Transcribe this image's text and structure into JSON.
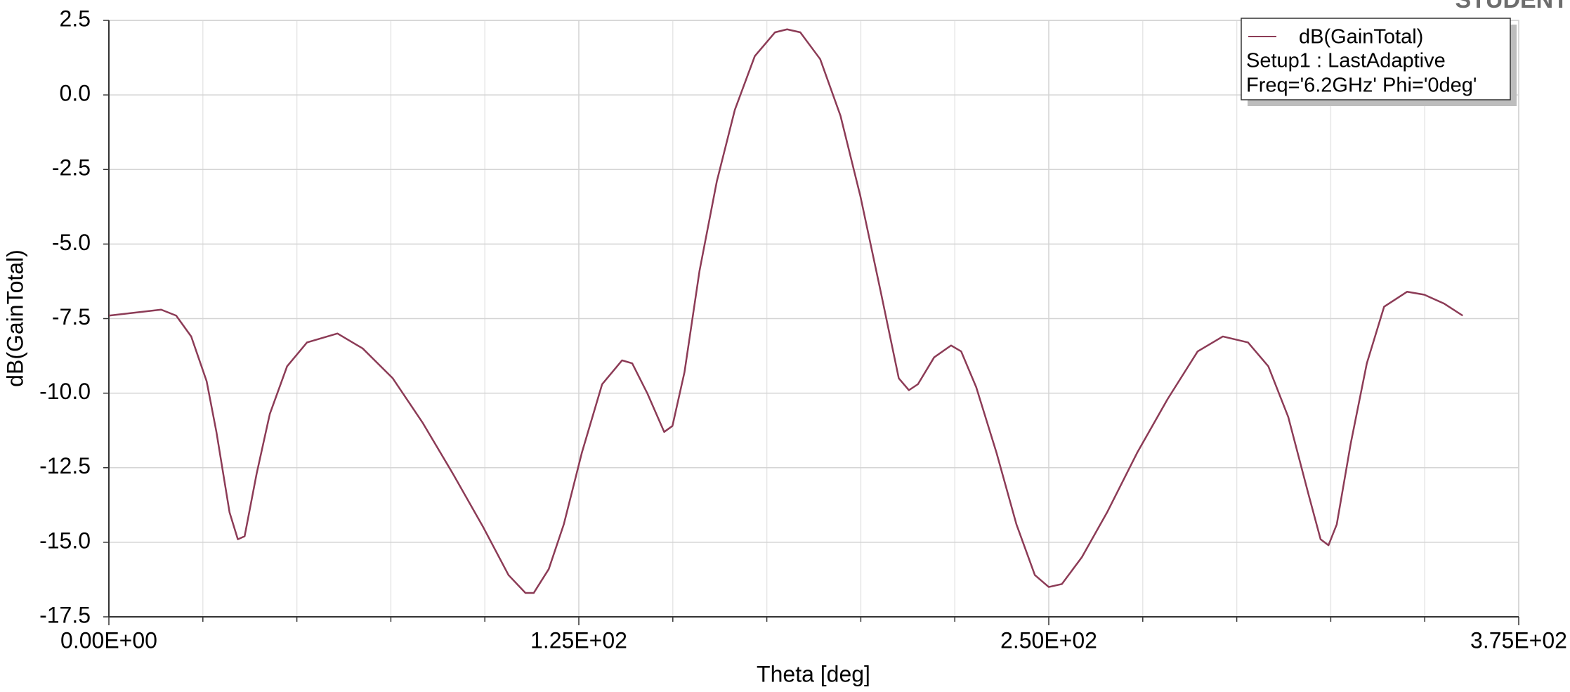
{
  "chart_data": {
    "type": "line",
    "watermark": "STUDENT",
    "x_label": "Theta [deg]",
    "y_label": "dB(GainTotal)",
    "legend_lines": [
      "Setup1 : LastAdaptive",
      "Freq='6.2GHz' Phi='0deg'"
    ],
    "legend_position": "upper right",
    "grid": true,
    "x": [
      0,
      13.9,
      17.9,
      21.9,
      26,
      28.6,
      32.1,
      34.3,
      36.1,
      39.3,
      42.8,
      47.4,
      52.7,
      60.8,
      67.5,
      75.5,
      83.5,
      91.5,
      99.6,
      106.3,
      110.8,
      113,
      117,
      121,
      125.8,
      131.2,
      136.5,
      139.2,
      143.2,
      147.7,
      149.9,
      153.1,
      157.1,
      161.7,
      166.5,
      171.8,
      177.2,
      180.4,
      183.9,
      189.2,
      194.6,
      199.9,
      205.3,
      210.1,
      212.8,
      215.2,
      219.5,
      224,
      226.7,
      230.7,
      236.1,
      241.4,
      246.3,
      250,
      253.5,
      258.8,
      265.5,
      273.5,
      281.6,
      289.6,
      296.3,
      303,
      308.4,
      313.7,
      319.1,
      322.3,
      324.4,
      326.6,
      330.3,
      334.6,
      339.2,
      345.3,
      349.9,
      355.2,
      360.1
    ],
    "series": [
      {
        "name": "dB(GainTotal)",
        "color": "#8c3b56",
        "values": [
          -7.4,
          -7.2,
          -7.4,
          -8.1,
          -9.6,
          -11.3,
          -14.0,
          -14.9,
          -14.8,
          -12.7,
          -10.7,
          -9.1,
          -8.3,
          -8.0,
          -8.5,
          -9.5,
          -11.0,
          -12.7,
          -14.5,
          -16.1,
          -16.7,
          -16.7,
          -15.9,
          -14.4,
          -12.0,
          -9.7,
          -8.9,
          -9.0,
          -10.0,
          -11.3,
          -11.1,
          -9.3,
          -5.9,
          -2.9,
          -0.5,
          1.3,
          2.1,
          2.2,
          2.1,
          1.2,
          -0.7,
          -3.4,
          -6.6,
          -9.5,
          -9.9,
          -9.7,
          -8.8,
          -8.4,
          -8.6,
          -9.8,
          -12.0,
          -14.4,
          -16.1,
          -16.5,
          -16.4,
          -15.5,
          -14.0,
          -12.0,
          -10.2,
          -8.6,
          -8.1,
          -8.3,
          -9.1,
          -10.8,
          -13.4,
          -14.9,
          -15.1,
          -14.4,
          -11.7,
          -9.0,
          -7.1,
          -6.6,
          -6.7,
          -7.0,
          -7.4
        ]
      }
    ],
    "xlim": [
      0,
      375
    ],
    "ylim": [
      -17.5,
      2.5
    ],
    "xticks": [
      {
        "value": 0,
        "label": "0.00E+00"
      },
      {
        "value": 125,
        "label": "1.25E+02"
      },
      {
        "value": 250,
        "label": "2.50E+02"
      },
      {
        "value": 375,
        "label": "3.75E+02"
      }
    ],
    "x_minor_ticks": [
      25,
      50,
      75,
      100,
      150,
      175,
      200,
      225,
      275,
      300,
      325,
      350
    ],
    "yticks": [
      2.5,
      {
        "value": 0,
        "label": "0.0"
      },
      -2.5,
      {
        "value": -5,
        "label": "-5.0"
      },
      -7.5,
      {
        "value": -10,
        "label": "-10.0"
      },
      -12.5,
      {
        "value": -15,
        "label": "-15.0"
      },
      -17.5
    ]
  }
}
